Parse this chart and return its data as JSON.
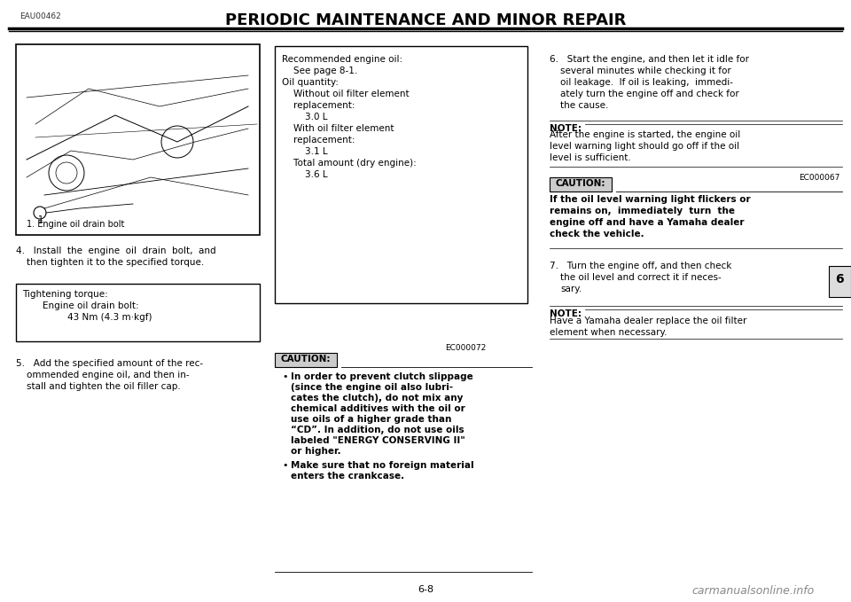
{
  "page_bg": "#ffffff",
  "header_code": "EAU00462",
  "header_title": "PERIODIC MAINTENANCE AND MINOR REPAIR",
  "page_number": "6-8",
  "tab_number": "6",
  "rec_box_text": [
    [
      "Recommended engine oil:",
      false
    ],
    [
      "    See page 8-1.",
      false
    ],
    [
      "Oil quantity:",
      false
    ],
    [
      "    Without oil filter element",
      false
    ],
    [
      "    replacement:",
      false
    ],
    [
      "        3.0 L",
      false
    ],
    [
      "    With oil filter element",
      false
    ],
    [
      "    replacement:",
      false
    ],
    [
      "        3.1 L",
      false
    ],
    [
      "    Total amount (dry engine):",
      false
    ],
    [
      "        3.6 L",
      false
    ]
  ],
  "tight_box_text": [
    [
      "Tightening torque:",
      false
    ],
    [
      "    Engine oil drain bolt:",
      false
    ],
    [
      "        43 Nm (4.3 m·kgf)",
      false
    ]
  ],
  "caution_code": "EC000072",
  "caution_bullet1_lines": [
    "In order to prevent clutch slippage",
    "(since the engine oil also lubri-",
    "cates the clutch), do not mix any",
    "chemical additives with the oil or",
    "use oils of a higher grade than",
    "“CD”. In addition, do not use oils",
    "labeled \"ENERGY CONSERVING II\"",
    "or higher."
  ],
  "caution_bullet2_lines": [
    "Make sure that no foreign material",
    "enters the crankcase."
  ],
  "step4_lines": [
    "4.   Install  the  engine  oil  drain  bolt,  and",
    "then tighten it to the specified torque."
  ],
  "step5_lines": [
    "5.   Add the specified amount of the rec-",
    "ommended engine oil, and then in-",
    "stall and tighten the oil filler cap."
  ],
  "step6_lines": [
    "6.   Start the engine, and then let it idle for",
    "several minutes while checking it for",
    "oil leakage.  If oil is leaking,  immedi-",
    "ately turn the engine off and check for",
    "the cause."
  ],
  "note1_lines": [
    "After the engine is started, the engine oil",
    "level warning light should go off if the oil",
    "level is sufficient."
  ],
  "caution2_code": "EC000067",
  "caution2_lines": [
    "If the oil level warning light flickers or",
    "remains on,  immediately  turn  the",
    "engine off and have a Yamaha dealer",
    "check the vehicle."
  ],
  "step7_lines": [
    "7.   Turn the engine off, and then check",
    "the oil level and correct it if neces-",
    "sary."
  ],
  "note2_lines": [
    "Have a Yamaha dealer replace the oil filter",
    "element when necessary."
  ],
  "image_caption": "1. Engine oil drain bolt",
  "watermark": "carmanualsonline.info"
}
